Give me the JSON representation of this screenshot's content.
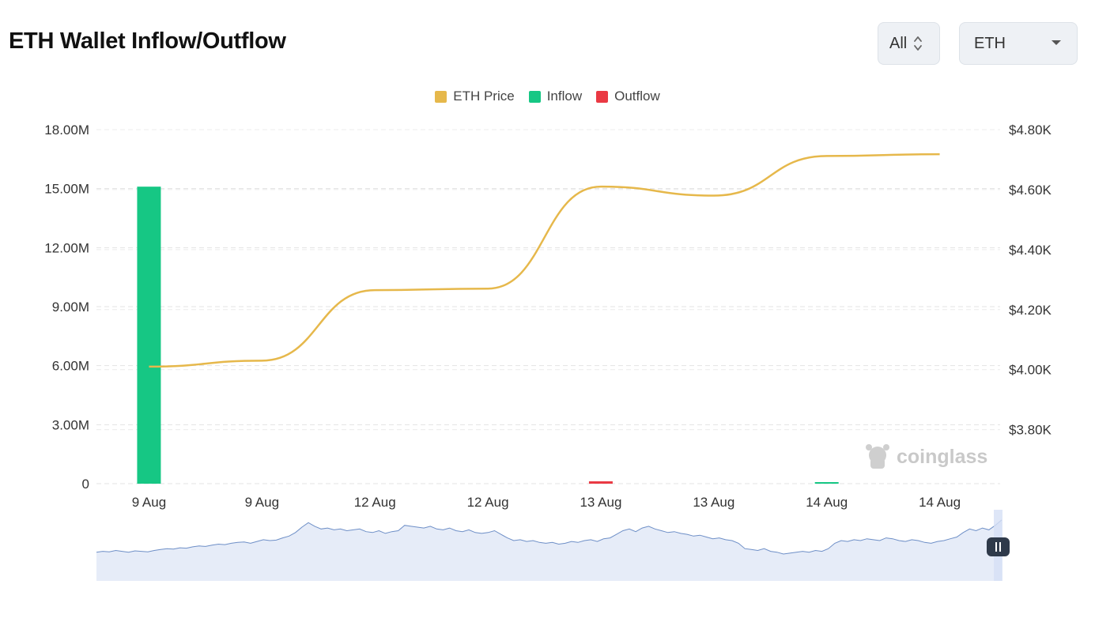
{
  "header": {
    "title": "ETH Wallet Inflow/Outflow",
    "range_select": {
      "value": "All"
    },
    "coin_select": {
      "value": "ETH"
    }
  },
  "legend": [
    {
      "label": "ETH Price",
      "color": "#e6b84b"
    },
    {
      "label": "Inflow",
      "color": "#16c784"
    },
    {
      "label": "Outflow",
      "color": "#ea3943"
    }
  ],
  "watermark": "coinglass",
  "chart_data": {
    "type": "bar",
    "x_tick_labels": [
      "9 Aug",
      "9 Aug",
      "12 Aug",
      "12 Aug",
      "13 Aug",
      "13 Aug",
      "14 Aug",
      "14 Aug"
    ],
    "left_axis": {
      "ticks": [
        0,
        3000000,
        6000000,
        9000000,
        12000000,
        15000000,
        18000000
      ],
      "tick_labels": [
        "0",
        "3.00M",
        "6.00M",
        "9.00M",
        "12.00M",
        "15.00M",
        "18.00M"
      ],
      "ylim": [
        0,
        18000000
      ]
    },
    "right_axis": {
      "ticks": [
        3800,
        4000,
        4200,
        4400,
        4600,
        4800
      ],
      "tick_labels": [
        "$3.80K",
        "$4.00K",
        "$4.20K",
        "$4.40K",
        "$4.60K",
        "$4.80K"
      ],
      "ylim": [
        3620,
        4800
      ]
    },
    "series": [
      {
        "name": "Inflow",
        "axis": "left",
        "kind": "bar",
        "color": "#16c784",
        "values": [
          15100000,
          0,
          0,
          0,
          0,
          0,
          60000,
          0
        ]
      },
      {
        "name": "Outflow",
        "axis": "left",
        "kind": "bar",
        "color": "#ea3943",
        "values": [
          0,
          0,
          0,
          0,
          120000,
          0,
          0,
          0
        ]
      },
      {
        "name": "ETH Price",
        "axis": "right",
        "kind": "line",
        "color": "#e6b84b",
        "values": [
          4010,
          4030,
          4265,
          4270,
          4610,
          4580,
          4712,
          4718
        ]
      }
    ],
    "grid": true,
    "legend_position": "top-center"
  },
  "navigator": {
    "fill": "#e6ecf8",
    "line": "#6e8fc7",
    "values": [
      3.2,
      3.3,
      3.25,
      3.4,
      3.3,
      3.2,
      3.35,
      3.3,
      3.25,
      3.4,
      3.5,
      3.6,
      3.55,
      3.7,
      3.65,
      3.8,
      3.9,
      3.85,
      4.0,
      4.1,
      4.05,
      4.2,
      4.3,
      4.35,
      4.2,
      4.4,
      4.6,
      4.5,
      4.55,
      4.8,
      5.0,
      5.4,
      6.0,
      6.5,
      6.1,
      5.8,
      5.9,
      5.7,
      5.8,
      5.6,
      5.7,
      5.8,
      5.5,
      5.4,
      5.6,
      5.3,
      5.5,
      5.6,
      6.2,
      6.1,
      6.0,
      5.9,
      6.1,
      5.8,
      5.7,
      5.9,
      5.6,
      5.5,
      5.7,
      5.4,
      5.3,
      5.4,
      5.6,
      5.2,
      4.8,
      4.5,
      4.6,
      4.4,
      4.5,
      4.3,
      4.2,
      4.3,
      4.1,
      4.2,
      4.4,
      4.3,
      4.5,
      4.6,
      4.4,
      4.7,
      4.8,
      5.2,
      5.6,
      5.8,
      5.5,
      5.9,
      6.1,
      5.8,
      5.6,
      5.4,
      5.5,
      5.3,
      5.2,
      5.0,
      5.1,
      4.9,
      4.7,
      4.8,
      4.6,
      4.5,
      4.2,
      3.6,
      3.5,
      3.4,
      3.6,
      3.3,
      3.2,
      3.0,
      3.1,
      3.2,
      3.3,
      3.2,
      3.4,
      3.3,
      3.6,
      4.2,
      4.5,
      4.4,
      4.6,
      4.5,
      4.7,
      4.6,
      4.5,
      4.8,
      4.7,
      4.5,
      4.4,
      4.6,
      4.5,
      4.3,
      4.2,
      4.4,
      4.5,
      4.7,
      4.9,
      5.4,
      5.8,
      5.6,
      5.9,
      5.7,
      6.2,
      6.8
    ]
  }
}
